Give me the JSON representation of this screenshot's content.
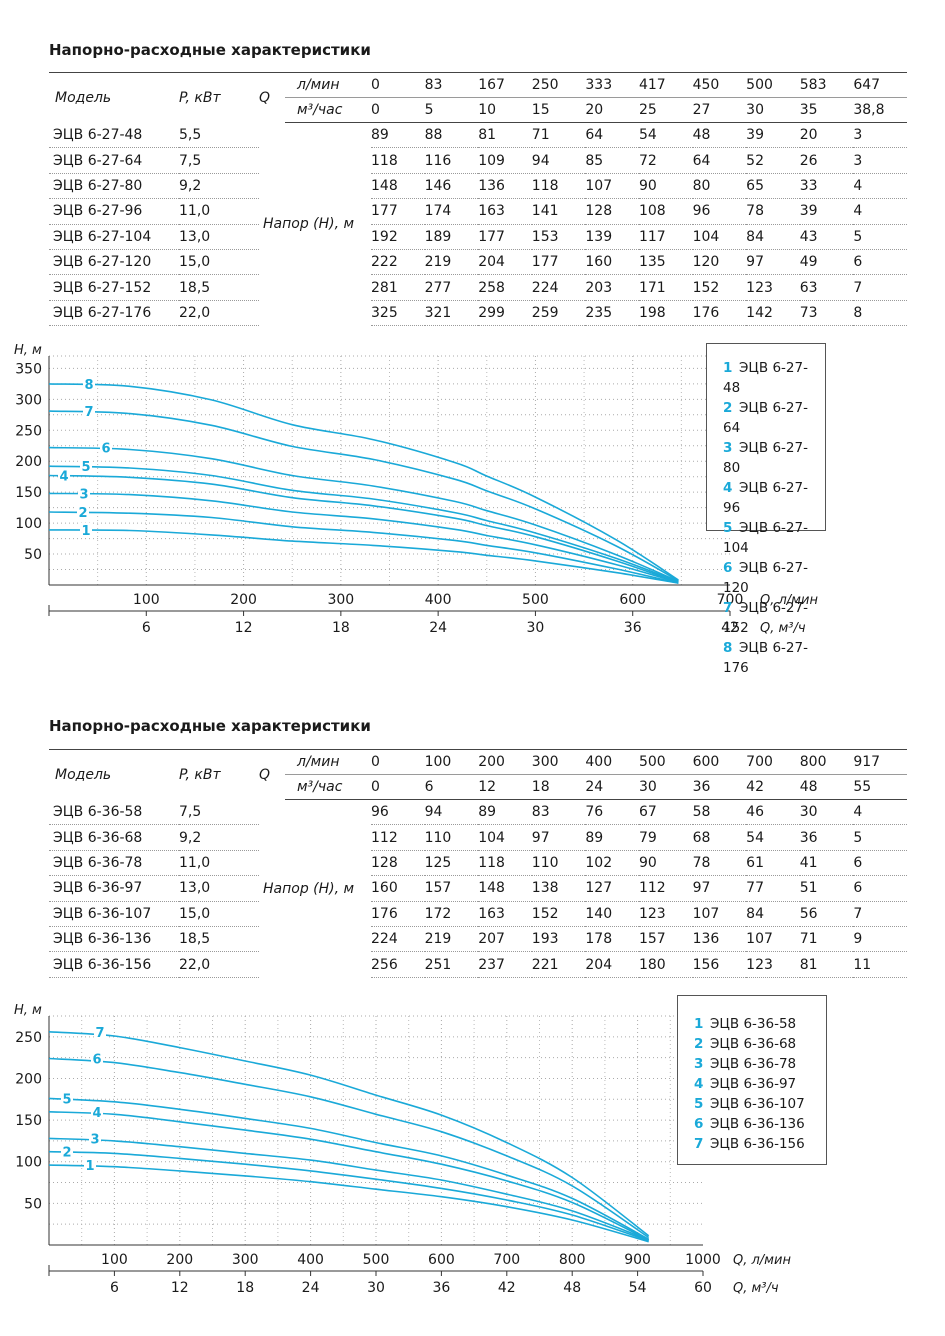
{
  "sections": [
    {
      "title": "Напорно-расходные характеристики",
      "table": {
        "model_header": "Модель",
        "power_header": "P, кВт",
        "q_label": "Q",
        "unit_lpm": "л/мин",
        "unit_m3h": "м³/час",
        "head_label": "Напор (Н), м",
        "flow_lpm": [
          "0",
          "83",
          "167",
          "250",
          "333",
          "417",
          "450",
          "500",
          "583",
          "647"
        ],
        "flow_m3h": [
          "0",
          "5",
          "10",
          "15",
          "20",
          "25",
          "27",
          "30",
          "35",
          "38,8"
        ],
        "rows": [
          {
            "model": "ЭЦВ 6-27-48",
            "power": "5,5",
            "head": [
              "89",
              "88",
              "81",
              "71",
              "64",
              "54",
              "48",
              "39",
              "20",
              "3"
            ]
          },
          {
            "model": "ЭЦВ 6-27-64",
            "power": "7,5",
            "head": [
              "118",
              "116",
              "109",
              "94",
              "85",
              "72",
              "64",
              "52",
              "26",
              "3"
            ]
          },
          {
            "model": "ЭЦВ 6-27-80",
            "power": "9,2",
            "head": [
              "148",
              "146",
              "136",
              "118",
              "107",
              "90",
              "80",
              "65",
              "33",
              "4"
            ]
          },
          {
            "model": "ЭЦВ 6-27-96",
            "power": "11,0",
            "head": [
              "177",
              "174",
              "163",
              "141",
              "128",
              "108",
              "96",
              "78",
              "39",
              "4"
            ]
          },
          {
            "model": "ЭЦВ 6-27-104",
            "power": "13,0",
            "head": [
              "192",
              "189",
              "177",
              "153",
              "139",
              "117",
              "104",
              "84",
              "43",
              "5"
            ]
          },
          {
            "model": "ЭЦВ 6-27-120",
            "power": "15,0",
            "head": [
              "222",
              "219",
              "204",
              "177",
              "160",
              "135",
              "120",
              "97",
              "49",
              "6"
            ]
          },
          {
            "model": "ЭЦВ 6-27-152",
            "power": "18,5",
            "head": [
              "281",
              "277",
              "258",
              "224",
              "203",
              "171",
              "152",
              "123",
              "63",
              "7"
            ]
          },
          {
            "model": "ЭЦВ 6-27-176",
            "power": "22,0",
            "head": [
              "325",
              "321",
              "299",
              "259",
              "235",
              "198",
              "176",
              "142",
              "73",
              "8"
            ]
          }
        ]
      },
      "chart_data": {
        "type": "line",
        "ylabel": "Н, м",
        "xlabel": "Q, л/мин",
        "xlabel2": "Q, м³/ч",
        "xlim": [
          0,
          700
        ],
        "ylim": [
          0,
          370
        ],
        "yticks": [
          "50",
          "100",
          "150",
          "200",
          "250",
          "300",
          "350"
        ],
        "xticks_lpm": [
          "100",
          "200",
          "300",
          "400",
          "500",
          "600",
          "700"
        ],
        "xticks_m3h": [
          "6",
          "12",
          "18",
          "24",
          "30",
          "36",
          "42"
        ],
        "grid": true,
        "legend_position": "top-right",
        "x": [
          0,
          83,
          167,
          250,
          333,
          417,
          450,
          500,
          583,
          647
        ],
        "series": [
          {
            "name": "1",
            "label": "ЭЦВ 6-27-48",
            "values": [
              89,
              88,
              81,
              71,
              64,
              54,
              48,
              39,
              20,
              3
            ]
          },
          {
            "name": "2",
            "label": "ЭЦВ 6-27-64",
            "values": [
              118,
              116,
              109,
              94,
              85,
              72,
              64,
              52,
              26,
              3
            ]
          },
          {
            "name": "3",
            "label": "ЭЦВ 6-27-80",
            "values": [
              148,
              146,
              136,
              118,
              107,
              90,
              80,
              65,
              33,
              4
            ]
          },
          {
            "name": "4",
            "label": "ЭЦВ 6-27-96",
            "values": [
              177,
              174,
              163,
              141,
              128,
              108,
              96,
              78,
              39,
              4
            ]
          },
          {
            "name": "5",
            "label": "ЭЦВ 6-27-104",
            "values": [
              192,
              189,
              177,
              153,
              139,
              117,
              104,
              84,
              43,
              5
            ]
          },
          {
            "name": "6",
            "label": "ЭЦВ 6-27-120",
            "values": [
              222,
              219,
              204,
              177,
              160,
              135,
              120,
              97,
              49,
              6
            ]
          },
          {
            "name": "7",
            "label": "ЭЦВ 6-27-152",
            "values": [
              281,
              277,
              258,
              224,
              203,
              171,
              152,
              123,
              63,
              7
            ]
          },
          {
            "name": "8",
            "label": "ЭЦВ 6-27-176",
            "values": [
              325,
              321,
              299,
              259,
              235,
              198,
              176,
              142,
              73,
              8
            ]
          }
        ],
        "line_color": "#1aa9d8"
      }
    },
    {
      "title": "Напорно-расходные характеристики",
      "table": {
        "model_header": "Модель",
        "power_header": "P, кВт",
        "q_label": "Q",
        "unit_lpm": "л/мин",
        "unit_m3h": "м³/час",
        "head_label": "Напор (Н), м",
        "flow_lpm": [
          "0",
          "100",
          "200",
          "300",
          "400",
          "500",
          "600",
          "700",
          "800",
          "917"
        ],
        "flow_m3h": [
          "0",
          "6",
          "12",
          "18",
          "24",
          "30",
          "36",
          "42",
          "48",
          "55"
        ],
        "rows": [
          {
            "model": "ЭЦВ 6-36-58",
            "power": "7,5",
            "head": [
              "96",
              "94",
              "89",
              "83",
              "76",
              "67",
              "58",
              "46",
              "30",
              "4"
            ]
          },
          {
            "model": "ЭЦВ 6-36-68",
            "power": "9,2",
            "head": [
              "112",
              "110",
              "104",
              "97",
              "89",
              "79",
              "68",
              "54",
              "36",
              "5"
            ]
          },
          {
            "model": "ЭЦВ 6-36-78",
            "power": "11,0",
            "head": [
              "128",
              "125",
              "118",
              "110",
              "102",
              "90",
              "78",
              "61",
              "41",
              "6"
            ]
          },
          {
            "model": "ЭЦВ 6-36-97",
            "power": "13,0",
            "head": [
              "160",
              "157",
              "148",
              "138",
              "127",
              "112",
              "97",
              "77",
              "51",
              "6"
            ]
          },
          {
            "model": "ЭЦВ 6-36-107",
            "power": "15,0",
            "head": [
              "176",
              "172",
              "163",
              "152",
              "140",
              "123",
              "107",
              "84",
              "56",
              "7"
            ]
          },
          {
            "model": "ЭЦВ 6-36-136",
            "power": "18,5",
            "head": [
              "224",
              "219",
              "207",
              "193",
              "178",
              "157",
              "136",
              "107",
              "71",
              "9"
            ]
          },
          {
            "model": "ЭЦВ 6-36-156",
            "power": "22,0",
            "head": [
              "256",
              "251",
              "237",
              "221",
              "204",
              "180",
              "156",
              "123",
              "81",
              "11"
            ]
          }
        ]
      },
      "chart_data": {
        "type": "line",
        "ylabel": "Н, м",
        "xlabel": "Q, л/мин",
        "xlabel2": "Q, м³/ч",
        "xlim": [
          0,
          1000
        ],
        "ylim": [
          0,
          275
        ],
        "yticks": [
          "50",
          "100",
          "150",
          "200",
          "250"
        ],
        "xticks_lpm": [
          "100",
          "200",
          "300",
          "400",
          "500",
          "600",
          "700",
          "800",
          "900",
          "1000"
        ],
        "xticks_m3h": [
          "6",
          "12",
          "18",
          "24",
          "30",
          "36",
          "42",
          "48",
          "54",
          "60"
        ],
        "grid": true,
        "legend_position": "top-right",
        "x": [
          0,
          100,
          200,
          300,
          400,
          500,
          600,
          700,
          800,
          917
        ],
        "series": [
          {
            "name": "1",
            "label": "ЭЦВ 6-36-58",
            "values": [
              96,
              94,
              89,
              83,
              76,
              67,
              58,
              46,
              30,
              4
            ]
          },
          {
            "name": "2",
            "label": "ЭЦВ 6-36-68",
            "values": [
              112,
              110,
              104,
              97,
              89,
              79,
              68,
              54,
              36,
              5
            ]
          },
          {
            "name": "3",
            "label": "ЭЦВ 6-36-78",
            "values": [
              128,
              125,
              118,
              110,
              102,
              90,
              78,
              61,
              41,
              6
            ]
          },
          {
            "name": "4",
            "label": "ЭЦВ 6-36-97",
            "values": [
              160,
              157,
              148,
              138,
              127,
              112,
              97,
              77,
              51,
              6
            ]
          },
          {
            "name": "5",
            "label": "ЭЦВ 6-36-107",
            "values": [
              176,
              172,
              163,
              152,
              140,
              123,
              107,
              84,
              56,
              7
            ]
          },
          {
            "name": "6",
            "label": "ЭЦВ 6-36-136",
            "values": [
              224,
              219,
              207,
              193,
              178,
              157,
              136,
              107,
              71,
              9
            ]
          },
          {
            "name": "7",
            "label": "ЭЦВ 6-36-156",
            "values": [
              256,
              251,
              237,
              221,
              204,
              180,
              156,
              123,
              81,
              11
            ]
          }
        ],
        "line_color": "#1aa9d8"
      }
    }
  ]
}
